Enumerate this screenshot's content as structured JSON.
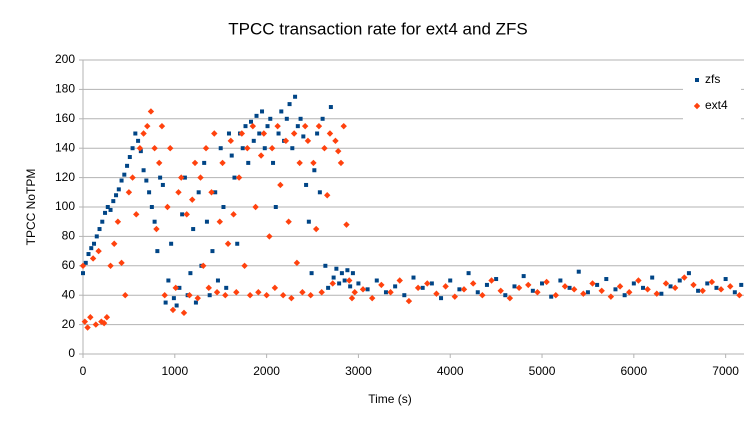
{
  "chart_data": {
    "type": "scatter",
    "title": "TPCC transaction rate for ext4 and ZFS",
    "x_label": "Time (s)",
    "y_label": "TPCC NoTPM",
    "xlim": [
      0,
      7200
    ],
    "xticks": [
      0,
      1000,
      2000,
      3000,
      4000,
      5000,
      6000,
      7000
    ],
    "ylim": [
      0,
      200
    ],
    "yticks": [
      0,
      20,
      40,
      60,
      80,
      100,
      120,
      140,
      160,
      180,
      200
    ],
    "grid": true,
    "legend": "right",
    "series": [
      {
        "name": "zfs",
        "color": "#004586",
        "marker": "square",
        "x": [
          0,
          30,
          60,
          90,
          120,
          150,
          180,
          210,
          240,
          270,
          300,
          330,
          360,
          390,
          420,
          450,
          480,
          510,
          540,
          570,
          600,
          630,
          660,
          690,
          720,
          750,
          780,
          810,
          840,
          870,
          900,
          930,
          960,
          990,
          1020,
          1050,
          1080,
          1110,
          1140,
          1170,
          1200,
          1230,
          1260,
          1290,
          1320,
          1350,
          1380,
          1410,
          1440,
          1470,
          1500,
          1530,
          1560,
          1590,
          1620,
          1650,
          1680,
          1710,
          1740,
          1770,
          1800,
          1830,
          1860,
          1890,
          1920,
          1950,
          1980,
          2010,
          2040,
          2070,
          2100,
          2130,
          2160,
          2190,
          2220,
          2250,
          2280,
          2310,
          2340,
          2370,
          2400,
          2430,
          2460,
          2490,
          2520,
          2550,
          2580,
          2610,
          2640,
          2670,
          2700,
          2730,
          2760,
          2790,
          2820,
          2850,
          2880,
          2910,
          2940,
          3000,
          3100,
          3200,
          3300,
          3400,
          3500,
          3600,
          3700,
          3800,
          3900,
          4000,
          4100,
          4200,
          4300,
          4400,
          4500,
          4600,
          4700,
          4800,
          4900,
          5000,
          5100,
          5200,
          5300,
          5400,
          5500,
          5600,
          5700,
          5800,
          5900,
          6000,
          6100,
          6200,
          6300,
          6400,
          6500,
          6600,
          6700,
          6800,
          6900,
          7000,
          7100,
          7170
        ],
        "values": [
          55,
          62,
          68,
          72,
          75,
          80,
          85,
          90,
          96,
          100,
          98,
          104,
          108,
          112,
          118,
          122,
          128,
          134,
          140,
          150,
          145,
          138,
          125,
          118,
          110,
          100,
          90,
          70,
          120,
          115,
          35,
          50,
          75,
          38,
          33,
          45,
          95,
          120,
          40,
          55,
          85,
          35,
          110,
          60,
          130,
          90,
          40,
          70,
          110,
          50,
          140,
          100,
          45,
          150,
          135,
          120,
          75,
          150,
          140,
          155,
          130,
          158,
          145,
          162,
          150,
          165,
          140,
          155,
          160,
          130,
          100,
          150,
          165,
          145,
          160,
          170,
          140,
          175,
          155,
          160,
          148,
          115,
          90,
          55,
          125,
          150,
          110,
          160,
          60,
          45,
          168,
          52,
          58,
          48,
          55,
          50,
          57,
          46,
          55,
          48,
          44,
          50,
          42,
          46,
          40,
          52,
          45,
          48,
          38,
          50,
          44,
          55,
          42,
          47,
          51,
          40,
          46,
          53,
          43,
          48,
          39,
          50,
          45,
          56,
          42,
          47,
          51,
          44,
          40,
          48,
          45,
          52,
          41,
          46,
          50,
          55,
          43,
          48,
          45,
          51,
          42,
          47
        ]
      },
      {
        "name": "ext4",
        "color": "#ff420e",
        "marker": "diamond",
        "x": [
          0,
          20,
          50,
          80,
          110,
          140,
          170,
          200,
          230,
          260,
          300,
          340,
          380,
          420,
          460,
          500,
          540,
          580,
          620,
          660,
          700,
          740,
          780,
          800,
          830,
          860,
          890,
          920,
          950,
          980,
          1010,
          1040,
          1070,
          1100,
          1130,
          1160,
          1190,
          1220,
          1250,
          1280,
          1310,
          1340,
          1370,
          1400,
          1430,
          1460,
          1490,
          1520,
          1550,
          1580,
          1610,
          1640,
          1670,
          1700,
          1730,
          1760,
          1790,
          1820,
          1850,
          1880,
          1910,
          1940,
          1970,
          2000,
          2030,
          2060,
          2090,
          2120,
          2150,
          2180,
          2210,
          2240,
          2270,
          2300,
          2330,
          2360,
          2390,
          2420,
          2450,
          2480,
          2510,
          2540,
          2570,
          2600,
          2630,
          2660,
          2690,
          2720,
          2750,
          2780,
          2810,
          2840,
          2870,
          2900,
          2930,
          2960,
          3050,
          3150,
          3250,
          3350,
          3450,
          3550,
          3650,
          3750,
          3850,
          3950,
          4050,
          4150,
          4250,
          4350,
          4450,
          4550,
          4650,
          4750,
          4850,
          4950,
          5050,
          5150,
          5250,
          5350,
          5450,
          5550,
          5650,
          5750,
          5850,
          5950,
          6050,
          6150,
          6250,
          6350,
          6450,
          6550,
          6650,
          6750,
          6850,
          6950,
          7050,
          7150
        ],
        "values": [
          60,
          22,
          18,
          25,
          65,
          20,
          70,
          22,
          21,
          25,
          60,
          75,
          90,
          62,
          40,
          110,
          120,
          95,
          140,
          150,
          155,
          165,
          140,
          85,
          130,
          155,
          40,
          100,
          140,
          30,
          45,
          110,
          120,
          28,
          95,
          40,
          105,
          130,
          38,
          120,
          60,
          140,
          45,
          110,
          150,
          42,
          90,
          130,
          40,
          75,
          145,
          95,
          42,
          120,
          150,
          60,
          140,
          40,
          155,
          100,
          42,
          135,
          150,
          40,
          80,
          140,
          45,
          155,
          115,
          40,
          145,
          90,
          38,
          150,
          62,
          130,
          42,
          155,
          145,
          40,
          130,
          85,
          155,
          42,
          140,
          108,
          150,
          48,
          145,
          138,
          130,
          155,
          88,
          50,
          38,
          42,
          44,
          38,
          47,
          42,
          50,
          36,
          45,
          48,
          41,
          46,
          39,
          44,
          48,
          40,
          50,
          43,
          38,
          45,
          47,
          42,
          49,
          40,
          46,
          44,
          41,
          48,
          43,
          39,
          46,
          42,
          50,
          44,
          41,
          48,
          45,
          52,
          47,
          43,
          49,
          44,
          46,
          40
        ]
      }
    ]
  }
}
